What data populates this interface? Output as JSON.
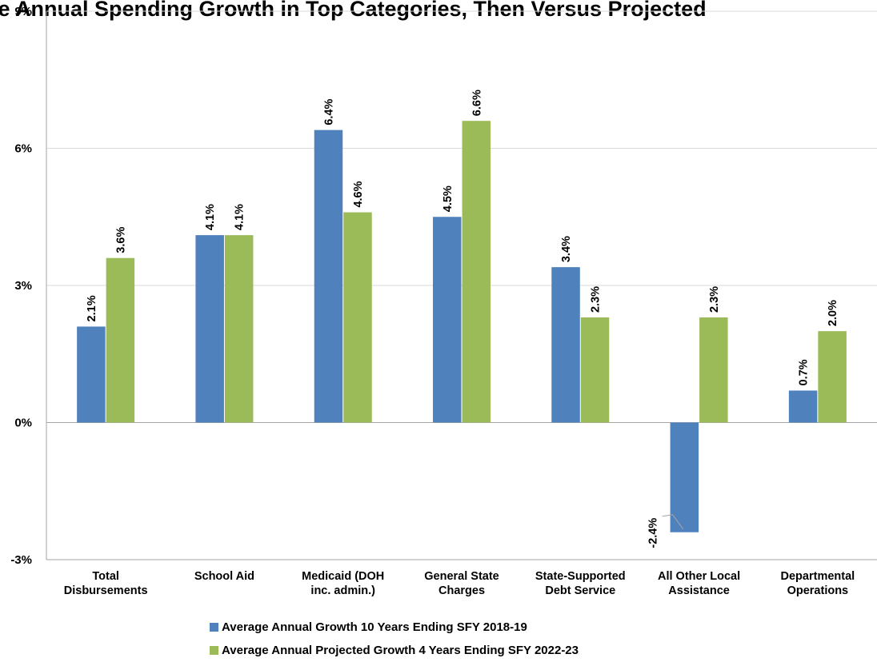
{
  "chart_data": {
    "type": "bar",
    "title": "…ge Annual Spending Growth in Top Categories, Then Versus Projected",
    "categories": [
      [
        "Total",
        "Disbursements"
      ],
      [
        "School Aid"
      ],
      [
        "Medicaid (DOH",
        "inc. admin.)"
      ],
      [
        "General State",
        "Charges"
      ],
      [
        "State-Supported",
        "Debt Service"
      ],
      [
        "All Other Local",
        "Assistance"
      ],
      [
        "Departmental",
        "Operations"
      ]
    ],
    "series": [
      {
        "name": "Average Annual Growth 10 Years Ending SFY 2018-19",
        "color": "#4F81BD",
        "values": [
          2.1,
          4.1,
          6.4,
          4.5,
          3.4,
          -2.4,
          0.7
        ],
        "labels": [
          "2.1%",
          "4.1%",
          "6.4%",
          "4.5%",
          "3.4%",
          "-2.4%",
          "0.7%"
        ]
      },
      {
        "name": "Average Annual Projected Growth 4 Years Ending SFY 2022-23",
        "color": "#9BBB59",
        "values": [
          3.6,
          4.1,
          4.6,
          6.6,
          2.3,
          2.3,
          2.0
        ],
        "labels": [
          "3.6%",
          "4.1%",
          "4.6%",
          "6.6%",
          "2.3%",
          "2.3%",
          "2.0%"
        ]
      }
    ],
    "ylim": [
      -3,
      9
    ],
    "yticks": [
      -3,
      0,
      3,
      6,
      9
    ],
    "ytick_labels": [
      "-3%",
      "0%",
      "3%",
      "6%",
      "9%"
    ],
    "grid": true,
    "legend_position": "bottom"
  }
}
